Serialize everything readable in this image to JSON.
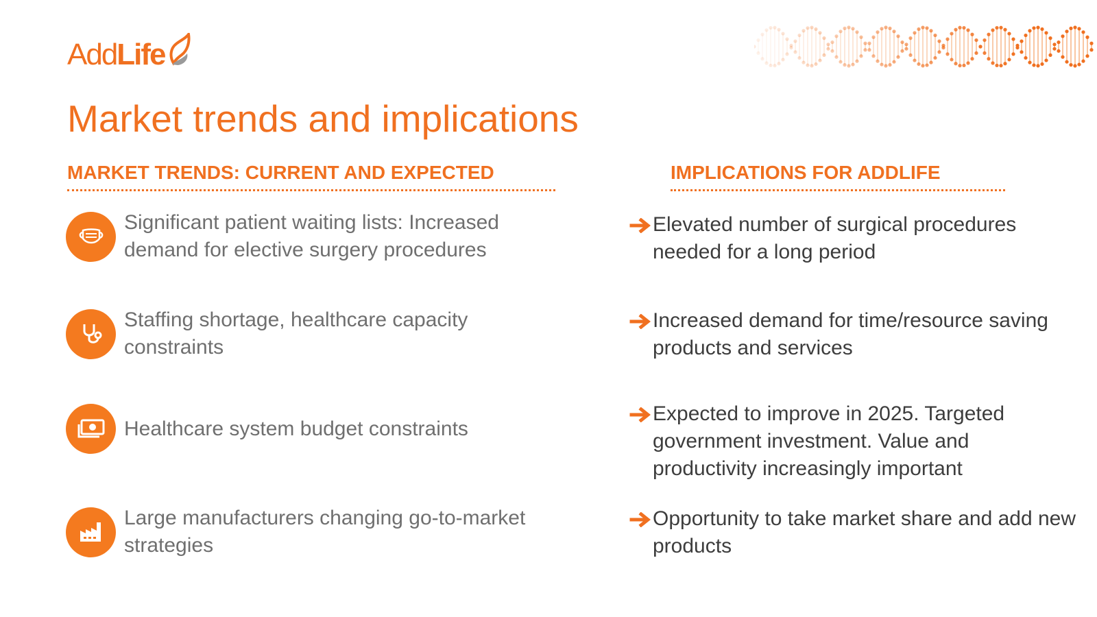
{
  "brand": {
    "logo_add": "Add",
    "logo_life": "Life"
  },
  "title": "Market trends and implications",
  "headers": {
    "trends": "MARKET TRENDS: CURRENT AND EXPECTED",
    "implications": "IMPLICATIONS FOR ADDLIFE"
  },
  "trends": [
    {
      "icon": "face-mask-icon",
      "text": "Significant patient waiting lists: Increased demand for elective surgery procedures"
    },
    {
      "icon": "stethoscope-icon",
      "text": "Staffing shortage, healthcare capacity constraints"
    },
    {
      "icon": "money-icon",
      "text": "Healthcare system budget constraints"
    },
    {
      "icon": "factory-icon",
      "text": "Large manufacturers changing go-to-market strategies"
    }
  ],
  "implications": [
    {
      "icon": "arrow-right-icon",
      "text": "Elevated number of surgical procedures needed for a long period"
    },
    {
      "icon": "arrow-right-icon",
      "text": "Increased demand for time/resource saving products and services"
    },
    {
      "icon": "arrow-right-icon",
      "text": "Expected to improve in 2025. Targeted government investment. Value and productivity increasingly important"
    },
    {
      "icon": "arrow-right-icon",
      "text": "Opportunity to take market share and add new products"
    }
  ],
  "colors": {
    "accent": "#f07020",
    "icon_bg": "#f47a1f",
    "trend_text": "#6f6f6f",
    "impl_text": "#3d3d3d"
  }
}
